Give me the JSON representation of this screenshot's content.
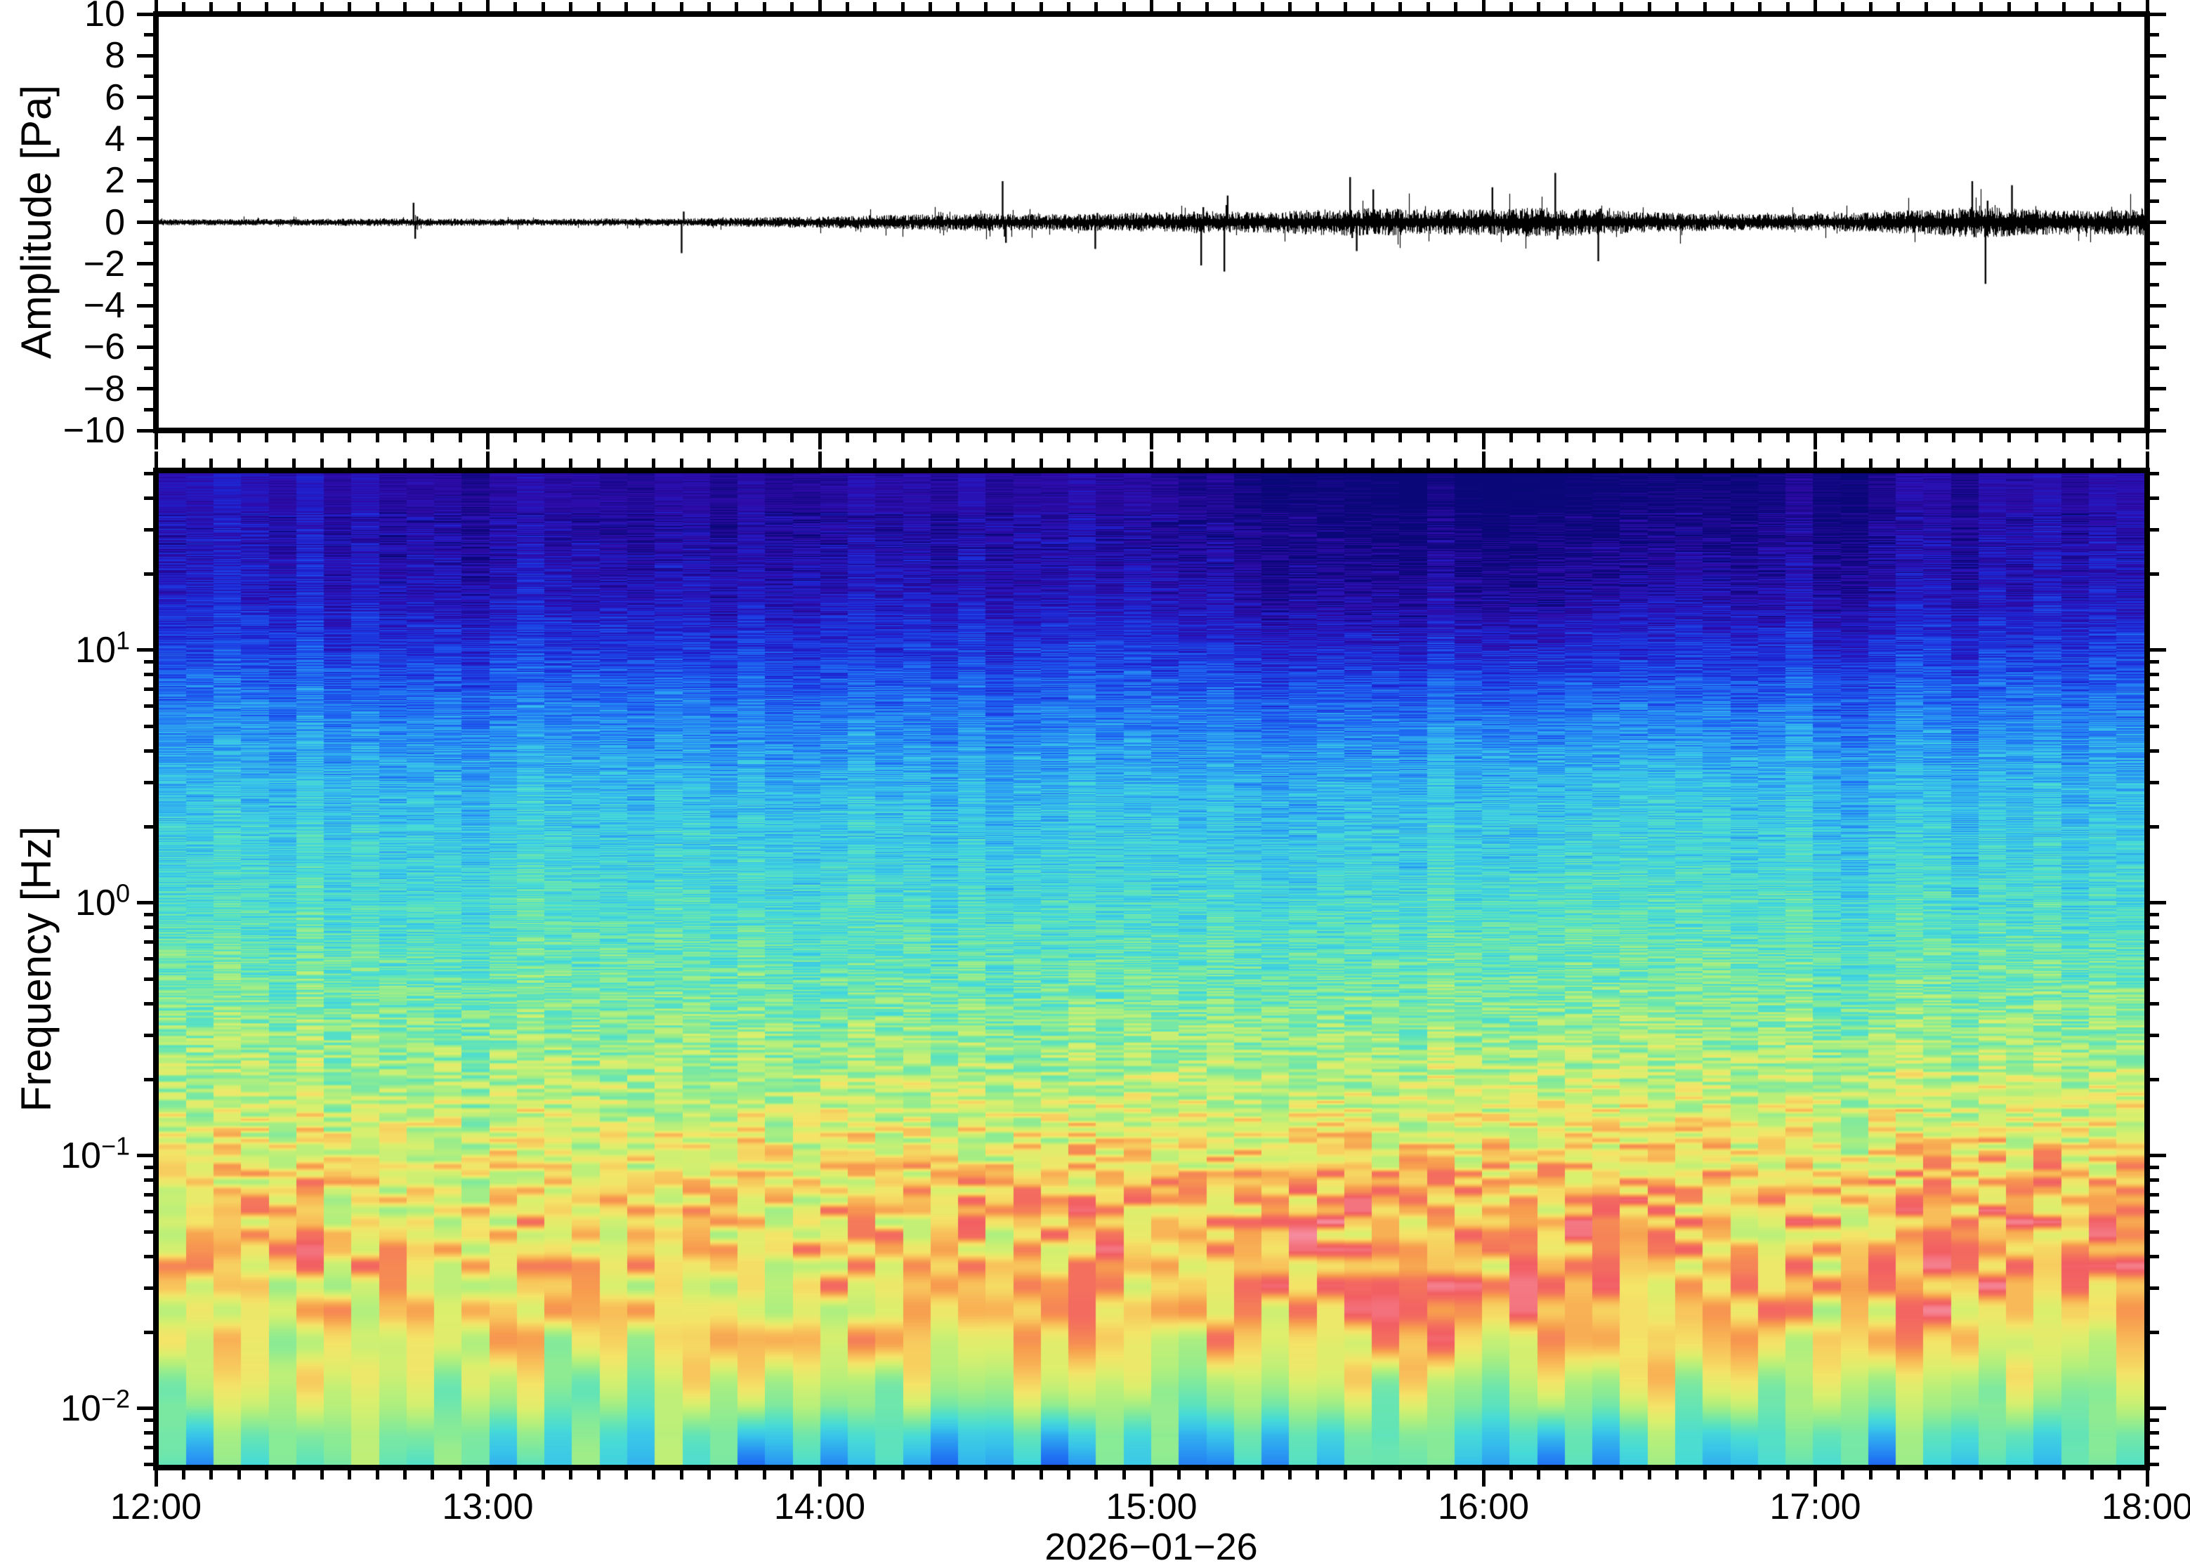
{
  "figure": {
    "background": "#ffffff",
    "frame_color": "#000000",
    "waveform_panel": {
      "ylabel": "Amplitude [Pa]",
      "ytick_labels": [
        "10",
        "8",
        "6",
        "4",
        "2",
        "0",
        "−2",
        "−4",
        "−6",
        "−8",
        "−10"
      ]
    },
    "spectrogram_panel": {
      "ylabel": "Frequency [Hz]",
      "ytick_labels": [
        {
          "mantissa": "10",
          "exponent": "1"
        },
        {
          "mantissa": "10",
          "exponent": "0"
        },
        {
          "mantissa": "10",
          "exponent": "−1"
        },
        {
          "mantissa": "10",
          "exponent": "−2"
        }
      ]
    },
    "xaxis": {
      "hour_labels": [
        "12:00",
        "13:00",
        "14:00",
        "15:00",
        "16:00",
        "17:00",
        "18:00"
      ],
      "date_label": "2026−01−26"
    }
  },
  "chart_data": [
    {
      "type": "line",
      "role": "waveform",
      "ylabel": "Amplitude [Pa]",
      "ylim": [
        -10,
        10
      ],
      "ytick_step": 2,
      "y_minor_step": 1,
      "x_start": "12:00",
      "x_end": "18:00",
      "x_date": "2026-01-26",
      "x_major_tick_min": 60,
      "x_minor_tick_min": 5,
      "line_color": "#000000",
      "envelope_pa_10min": [
        0.1,
        0.1,
        0.1,
        0.11,
        0.13,
        0.12,
        0.11,
        0.11,
        0.12,
        0.12,
        0.14,
        0.17,
        0.2,
        0.24,
        0.28,
        0.3,
        0.28,
        0.3,
        0.34,
        0.4,
        0.36,
        0.45,
        0.5,
        0.46,
        0.46,
        0.52,
        0.46,
        0.36,
        0.3,
        0.28,
        0.3,
        0.34,
        0.45,
        0.55,
        0.45,
        0.42,
        0.46
      ],
      "spikes_pa": [
        {
          "t": 0.77,
          "a": 0.95
        },
        {
          "t": 0.775,
          "a": -0.8
        },
        {
          "t": 1.58,
          "a": -1.5
        },
        {
          "t": 2.55,
          "a": 2.0
        },
        {
          "t": 2.56,
          "a": -1.0
        },
        {
          "t": 2.83,
          "a": -1.3
        },
        {
          "t": 3.15,
          "a": -2.1
        },
        {
          "t": 3.22,
          "a": -2.4
        },
        {
          "t": 3.23,
          "a": 1.3
        },
        {
          "t": 3.6,
          "a": 2.2
        },
        {
          "t": 3.62,
          "a": -1.4
        },
        {
          "t": 3.67,
          "a": 1.6
        },
        {
          "t": 4.03,
          "a": 1.7
        },
        {
          "t": 4.22,
          "a": 2.4
        },
        {
          "t": 4.35,
          "a": -1.9
        },
        {
          "t": 5.48,
          "a": 2.0
        },
        {
          "t": 5.52,
          "a": -3.0
        },
        {
          "t": 5.6,
          "a": 1.8
        }
      ]
    },
    {
      "type": "heatmap",
      "role": "spectrogram",
      "ylabel": "Frequency [Hz]",
      "yscale": "log",
      "freq_min_hz": 0.00584,
      "freq_max_hz": 51.4,
      "freq_bin_hz": 0.006,
      "time_bin_min": 5,
      "x_start": "12:00",
      "x_end": "18:00",
      "colormap_anchors": [
        [
          0.0,
          "#0A0778"
        ],
        [
          0.07,
          "#2F0BA8"
        ],
        [
          0.13,
          "#1E21CE"
        ],
        [
          0.19,
          "#1D45E8"
        ],
        [
          0.25,
          "#1F6FF2"
        ],
        [
          0.31,
          "#2B9CF2"
        ],
        [
          0.37,
          "#38C3EA"
        ],
        [
          0.43,
          "#46DAD8"
        ],
        [
          0.49,
          "#63E4B6"
        ],
        [
          0.55,
          "#8BEB94"
        ],
        [
          0.61,
          "#B4EF7C"
        ],
        [
          0.67,
          "#DCEF6D"
        ],
        [
          0.72,
          "#F4E468"
        ],
        [
          0.77,
          "#F8C45B"
        ],
        [
          0.82,
          "#F79E4E"
        ],
        [
          0.87,
          "#F4735C"
        ],
        [
          0.91,
          "#F25F63"
        ],
        [
          0.95,
          "#F5899B"
        ],
        [
          1.0,
          "#F9B9C9"
        ]
      ],
      "base_profile_u_v_hot": [
        [
          0.0,
          0.04,
          0
        ],
        [
          0.06,
          0.05,
          0
        ],
        [
          0.12,
          0.085,
          0
        ],
        [
          0.18,
          0.16,
          0
        ],
        [
          0.24,
          0.26,
          0
        ],
        [
          0.32,
          0.36,
          0
        ],
        [
          0.42,
          0.43,
          0
        ],
        [
          0.52,
          0.5,
          0.02
        ],
        [
          0.6,
          0.56,
          0.06
        ],
        [
          0.67,
          0.61,
          0.12
        ],
        [
          0.73,
          0.64,
          0.19
        ],
        [
          0.79,
          0.63,
          0.24
        ],
        [
          0.85,
          0.62,
          0.22
        ],
        [
          0.9,
          0.6,
          0.13
        ],
        [
          0.94,
          0.56,
          0.04
        ],
        [
          0.97,
          0.47,
          0
        ],
        [
          1.0,
          0.42,
          0
        ]
      ],
      "heat_profile_halfhour": [
        0.42,
        0.5,
        0.38,
        0.42,
        0.55,
        0.62,
        0.72,
        0.85,
        0.78,
        0.6,
        0.55,
        0.8,
        0.72
      ]
    }
  ]
}
